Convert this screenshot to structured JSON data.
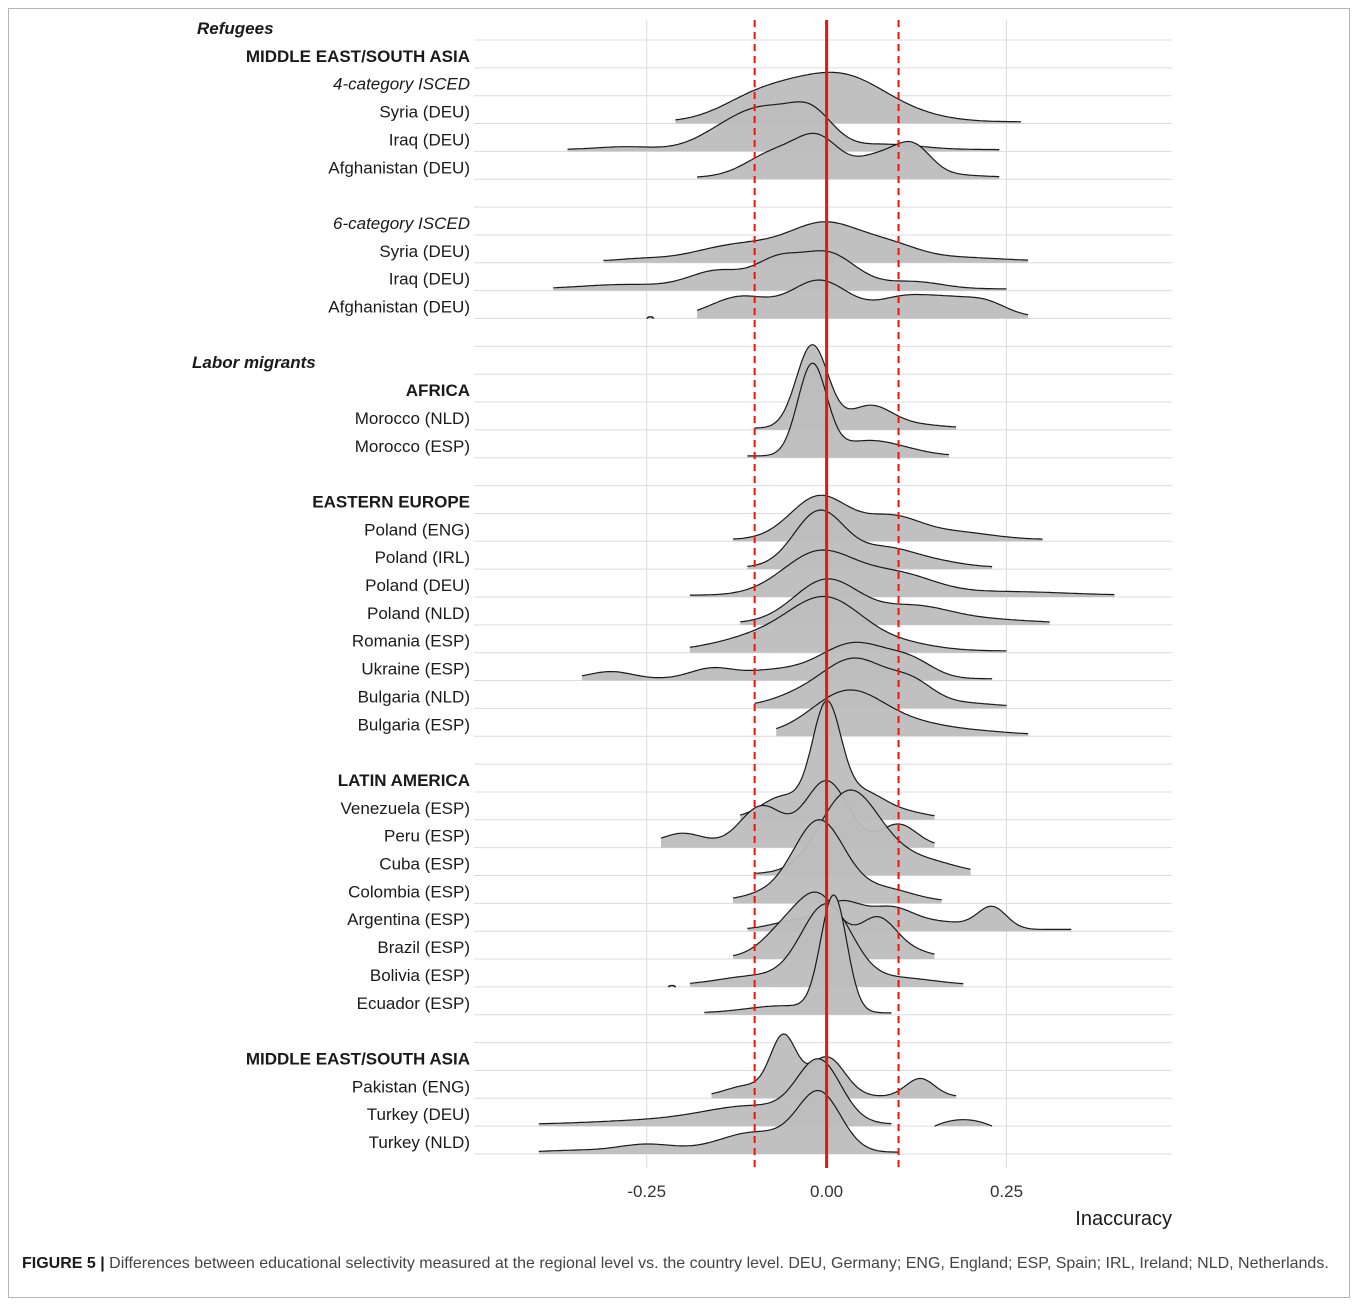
{
  "caption": {
    "label": "FIGURE 5 |",
    "text": "Differences between educational selectivity measured at the regional level vs. the country level. DEU, Germany; ENG, England; ESP, Spain; IRL, Ireland; NLD, Netherlands."
  },
  "colors": {
    "ridge_fill": "#bdbdbd",
    "ridge_line": "#1a1a1a",
    "zero_line": "#e8160c",
    "dashed_line": "#e8160c",
    "grid": "#dcdcdc"
  },
  "chart_data": {
    "type": "ridgeline",
    "xlabel": "Inaccuracy",
    "xlim": [
      -0.49,
      0.48
    ],
    "x_ticks": [
      -0.25,
      0.0,
      0.25
    ],
    "x_tick_labels": [
      "-0.25",
      "0.00",
      "0.25"
    ],
    "reference_lines": [
      {
        "x": 0.0,
        "style": "solid",
        "color": "red"
      },
      {
        "x": -0.1,
        "style": "dashed",
        "color": "red"
      },
      {
        "x": 0.1,
        "style": "dashed",
        "color": "red"
      }
    ],
    "grid": true,
    "rows": [
      {
        "label": "Refugees",
        "style": "bolditalic"
      },
      {
        "label": "MIDDLE EAST/SOUTH ASIA",
        "style": "bold"
      },
      {
        "label": "4-category ISCED",
        "style": "italic"
      },
      {
        "label": "Syria (DEU)",
        "range": [
          -0.21,
          0.27
        ],
        "peaks": [
          [
            -0.01,
            1.0,
            0.06
          ],
          [
            -0.1,
            0.55,
            0.05
          ],
          [
            0.05,
            0.5,
            0.05
          ],
          [
            0.12,
            0.15,
            0.05
          ]
        ]
      },
      {
        "label": "Iraq (DEU)",
        "range": [
          -0.36,
          0.24
        ],
        "peaks": [
          [
            -0.02,
            0.9,
            0.03
          ],
          [
            -0.08,
            0.95,
            0.04
          ],
          [
            -0.14,
            0.5,
            0.04
          ],
          [
            -0.28,
            0.08,
            0.04
          ],
          [
            0.08,
            0.15,
            0.05
          ]
        ]
      },
      {
        "label": "Afghanistan (DEU)",
        "range": [
          -0.18,
          0.24
        ],
        "peaks": [
          [
            -0.01,
            0.95,
            0.03
          ],
          [
            -0.07,
            0.7,
            0.04
          ],
          [
            0.07,
            0.55,
            0.03
          ],
          [
            0.12,
            0.78,
            0.025
          ],
          [
            0.16,
            0.08,
            0.05
          ]
        ]
      },
      {
        "label": "",
        "spacer": true
      },
      {
        "label": "6-category ISCED",
        "style": "italic"
      },
      {
        "label": "Syria (DEU)",
        "range": [
          -0.31,
          0.28
        ],
        "peaks": [
          [
            0.0,
            1.0,
            0.05
          ],
          [
            -0.12,
            0.45,
            0.06
          ],
          [
            0.09,
            0.35,
            0.04
          ],
          [
            -0.26,
            0.05,
            0.03
          ],
          [
            0.18,
            0.1,
            0.06
          ]
        ]
      },
      {
        "label": "Iraq (DEU)",
        "range": [
          -0.38,
          0.25
        ],
        "peaks": [
          [
            0.0,
            1.0,
            0.04
          ],
          [
            -0.15,
            0.5,
            0.04
          ],
          [
            -0.07,
            0.65,
            0.03
          ],
          [
            -0.28,
            0.12,
            0.06
          ],
          [
            0.12,
            0.2,
            0.04
          ]
        ]
      },
      {
        "label": "Afghanistan (DEU)",
        "range": [
          -0.18,
          0.28
        ],
        "peaks": [
          [
            -0.01,
            1.0,
            0.04
          ],
          [
            -0.12,
            0.55,
            0.04
          ],
          [
            0.11,
            0.55,
            0.04
          ],
          [
            0.22,
            0.4,
            0.03
          ],
          [
            0.17,
            0.3,
            0.03
          ]
        ],
        "extra": [
          [
            -0.25,
            -0.24,
            0.05
          ]
        ]
      },
      {
        "label": "",
        "spacer": true
      },
      {
        "label": "Labor migrants",
        "style": "bolditalic"
      },
      {
        "label": "AFRICA",
        "style": "bold"
      },
      {
        "label": "Morocco (NLD)",
        "range": [
          -0.1,
          0.18
        ],
        "peaks": [
          [
            -0.02,
            2.3,
            0.022
          ],
          [
            0.06,
            0.6,
            0.03
          ],
          [
            0.12,
            0.1,
            0.04
          ]
        ]
      },
      {
        "label": "Morocco (ESP)",
        "range": [
          -0.11,
          0.17
        ],
        "peaks": [
          [
            -0.02,
            2.5,
            0.02
          ],
          [
            0.05,
            0.35,
            0.04
          ],
          [
            0.1,
            0.15,
            0.04
          ]
        ]
      },
      {
        "label": "",
        "spacer": true
      },
      {
        "label": "EASTERN EUROPE",
        "style": "bold"
      },
      {
        "label": "Poland (ENG)",
        "range": [
          -0.13,
          0.3
        ],
        "peaks": [
          [
            -0.01,
            1.2,
            0.04
          ],
          [
            0.09,
            0.6,
            0.04
          ],
          [
            0.18,
            0.2,
            0.05
          ]
        ]
      },
      {
        "label": "Poland (IRL)",
        "range": [
          -0.11,
          0.23
        ],
        "peaks": [
          [
            -0.01,
            1.55,
            0.035
          ],
          [
            0.08,
            0.5,
            0.04
          ],
          [
            0.15,
            0.15,
            0.04
          ]
        ]
      },
      {
        "label": "Poland (DEU)",
        "range": [
          -0.19,
          0.4
        ],
        "peaks": [
          [
            -0.01,
            1.2,
            0.05
          ],
          [
            0.1,
            0.55,
            0.05
          ],
          [
            0.25,
            0.1,
            0.08
          ]
        ]
      },
      {
        "label": "Poland (NLD)",
        "range": [
          -0.12,
          0.31
        ],
        "peaks": [
          [
            0.0,
            1.2,
            0.045
          ],
          [
            0.12,
            0.45,
            0.05
          ],
          [
            0.22,
            0.1,
            0.06
          ]
        ]
      },
      {
        "label": "Romania (ESP)",
        "range": [
          -0.19,
          0.25
        ],
        "peaks": [
          [
            0.0,
            1.35,
            0.05
          ],
          [
            -0.09,
            0.4,
            0.06
          ],
          [
            0.1,
            0.2,
            0.05
          ]
        ]
      },
      {
        "label": "Ukraine (ESP)",
        "range": [
          -0.34,
          0.23
        ],
        "peaks": [
          [
            0.04,
            1.0,
            0.05
          ],
          [
            -0.3,
            0.2,
            0.03
          ],
          [
            -0.16,
            0.28,
            0.03
          ],
          [
            0.12,
            0.35,
            0.03
          ],
          [
            -0.08,
            0.2,
            0.04
          ]
        ]
      },
      {
        "label": "Bulgaria (NLD)",
        "range": [
          -0.1,
          0.25
        ],
        "peaks": [
          [
            0.04,
            1.3,
            0.045
          ],
          [
            0.12,
            0.55,
            0.03
          ],
          [
            -0.04,
            0.25,
            0.04
          ],
          [
            0.19,
            0.1,
            0.04
          ]
        ]
      },
      {
        "label": "Bulgaria (ESP)",
        "range": [
          -0.07,
          0.28
        ],
        "peaks": [
          [
            0.03,
            1.2,
            0.05
          ],
          [
            0.13,
            0.25,
            0.05
          ],
          [
            0.22,
            0.06,
            0.04
          ]
        ]
      },
      {
        "label": "",
        "spacer": true
      },
      {
        "label": "LATIN AMERICA",
        "style": "bold"
      },
      {
        "label": "Venezuela (ESP)",
        "range": [
          -0.12,
          0.15
        ],
        "peaks": [
          [
            0.0,
            3.0,
            0.02
          ],
          [
            -0.06,
            0.6,
            0.03
          ],
          [
            0.05,
            0.7,
            0.03
          ],
          [
            0.11,
            0.15,
            0.03
          ]
        ]
      },
      {
        "label": "Peru (ESP)",
        "range": [
          -0.23,
          0.15
        ],
        "peaks": [
          [
            0.0,
            1.8,
            0.03
          ],
          [
            -0.09,
            1.1,
            0.03
          ],
          [
            -0.2,
            0.35,
            0.03
          ],
          [
            0.1,
            0.6,
            0.025
          ]
        ]
      },
      {
        "label": "Cuba (ESP)",
        "range": [
          -0.1,
          0.2
        ],
        "peaks": [
          [
            0.03,
            2.2,
            0.04
          ],
          [
            0.09,
            0.35,
            0.04
          ],
          [
            0.15,
            0.25,
            0.04
          ]
        ]
      },
      {
        "label": "Colombia (ESP)",
        "range": [
          -0.13,
          0.16
        ],
        "peaks": [
          [
            -0.01,
            2.2,
            0.035
          ],
          [
            0.08,
            0.35,
            0.04
          ],
          [
            -0.08,
            0.2,
            0.04
          ]
        ]
      },
      {
        "label": "Argentina (ESP)",
        "range": [
          -0.11,
          0.34
        ],
        "peaks": [
          [
            0.02,
            0.75,
            0.03
          ],
          [
            0.09,
            0.55,
            0.03
          ],
          [
            0.23,
            0.6,
            0.02
          ],
          [
            -0.05,
            0.2,
            0.03
          ],
          [
            0.16,
            0.2,
            0.04
          ]
        ]
      },
      {
        "label": "Brazil (ESP)",
        "range": [
          -0.13,
          0.15
        ],
        "peaks": [
          [
            -0.01,
            1.6,
            0.03
          ],
          [
            0.07,
            1.0,
            0.025
          ],
          [
            -0.06,
            0.7,
            0.03
          ],
          [
            0.11,
            0.2,
            0.03
          ]
        ]
      },
      {
        "label": "Bolivia (ESP)",
        "range": [
          -0.19,
          0.19
        ],
        "peaks": [
          [
            0.0,
            2.2,
            0.035
          ],
          [
            -0.1,
            0.25,
            0.05
          ],
          [
            0.1,
            0.2,
            0.05
          ]
        ],
        "extra": [
          [
            -0.22,
            -0.21,
            0.04
          ]
        ]
      },
      {
        "label": "Ecuador (ESP)",
        "range": [
          -0.17,
          0.09
        ],
        "peaks": [
          [
            0.01,
            3.2,
            0.018
          ],
          [
            -0.06,
            0.2,
            0.05
          ]
        ]
      },
      {
        "label": "",
        "spacer": true
      },
      {
        "label": "MIDDLE EAST/SOUTH ASIA",
        "style": "bold"
      },
      {
        "label": "Pakistan (ENG)",
        "range": [
          -0.16,
          0.18
        ],
        "peaks": [
          [
            -0.06,
            1.6,
            0.018
          ],
          [
            0.0,
            1.1,
            0.025
          ],
          [
            0.13,
            0.5,
            0.02
          ],
          [
            -0.11,
            0.3,
            0.03
          ]
        ]
      },
      {
        "label": "Turkey (DEU)",
        "range": [
          -0.4,
          0.09
        ],
        "peaks": [
          [
            -0.01,
            1.6,
            0.03
          ],
          [
            -0.1,
            0.5,
            0.07
          ],
          [
            -0.25,
            0.1,
            0.08
          ]
        ],
        "extra": [
          [
            0.15,
            0.23,
            0.18
          ]
        ]
      },
      {
        "label": "Turkey (NLD)",
        "range": [
          -0.4,
          0.1
        ],
        "peaks": [
          [
            -0.01,
            1.6,
            0.03
          ],
          [
            -0.1,
            0.55,
            0.05
          ],
          [
            -0.25,
            0.22,
            0.04
          ],
          [
            -0.35,
            0.05,
            0.04
          ]
        ]
      }
    ]
  }
}
